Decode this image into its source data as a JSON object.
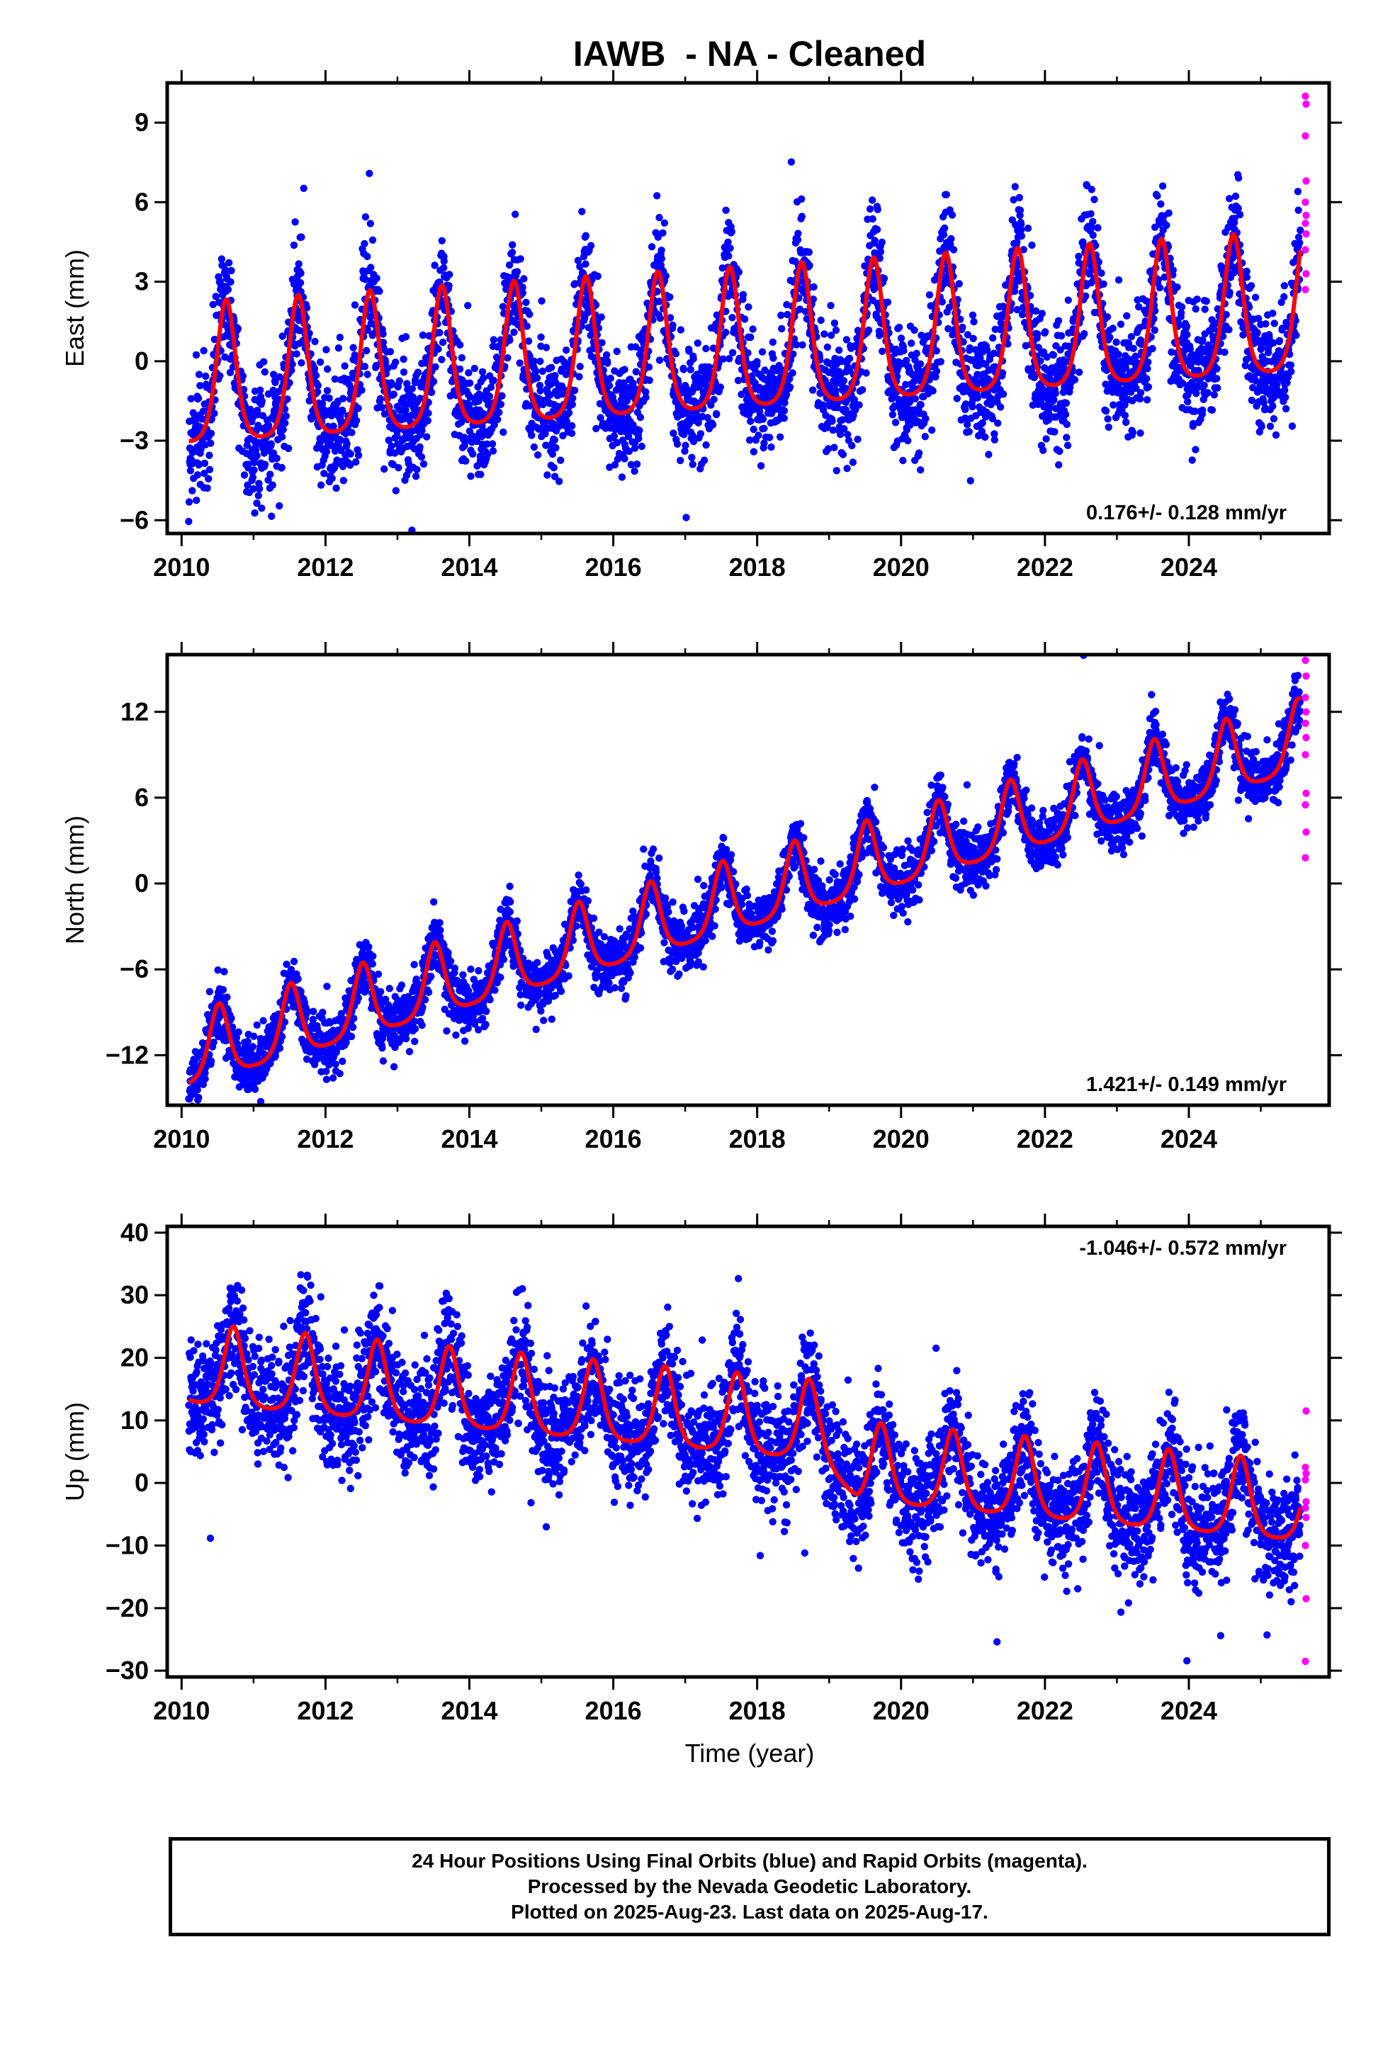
{
  "title": "IAWB  - NA - Cleaned",
  "xlabel": "Time (year)",
  "footer": [
    "24 Hour Positions Using Final Orbits (blue) and Rapid Orbits (magenta).",
    "Processed by the Nevada Geodetic Laboratory.",
    "Plotted on 2025-Aug-23. Last data on 2025-Aug-17."
  ],
  "colors": {
    "final_orbits": "#0000ff",
    "rapid_orbits": "#ff00ff",
    "model_fit": "#ff0000"
  },
  "chart_data": [
    {
      "type": "scatter",
      "ylabel": "East (mm)",
      "xlim": [
        2009.8,
        2025.95
      ],
      "ylim": [
        -6.5,
        10.5
      ],
      "xticks": [
        2010,
        2012,
        2014,
        2016,
        2018,
        2020,
        2022,
        2024
      ],
      "yticks": [
        -6,
        -3,
        0,
        3,
        6,
        9
      ],
      "ytick_labels": [
        "−6",
        "−3",
        "0",
        "3",
        "6",
        "9"
      ],
      "rate_label": "0.176+/- 0.128 mm/yr",
      "rate_label_position": "bottom-right",
      "model": {
        "offset": -0.3,
        "trend": 0.176,
        "amplitude": 2.3,
        "peak_phase": 0.62,
        "noise": 1.1
      },
      "data_start": 2010.1,
      "data_end": 2025.55,
      "rapid_orbit_values": [
        2.7,
        3.3,
        4.2,
        4.8,
        5.2,
        5.5,
        6.0,
        6.8,
        8.5,
        9.7,
        10.0
      ]
    },
    {
      "type": "scatter",
      "ylabel": "North (mm)",
      "xlim": [
        2009.8,
        2025.95
      ],
      "ylim": [
        -15.5,
        16.0
      ],
      "xticks": [
        2010,
        2012,
        2014,
        2016,
        2018,
        2020,
        2022,
        2024
      ],
      "yticks": [
        -12,
        -6,
        0,
        6,
        12
      ],
      "ytick_labels": [
        "−12",
        "−6",
        "0",
        "6",
        "12"
      ],
      "rate_label": "1.421+/- 0.149 mm/yr",
      "rate_label_position": "bottom-right",
      "model": {
        "offset": -1.5,
        "trend": 1.421,
        "amplitude": 2.2,
        "peak_phase": 0.52,
        "noise": 1.0
      },
      "data_start": 2010.1,
      "data_end": 2025.55,
      "rapid_orbit_values": [
        1.8,
        3.6,
        5.5,
        6.3,
        9.0,
        10.2,
        11.2,
        12.0,
        13.0,
        14.5,
        15.6
      ]
    },
    {
      "type": "scatter",
      "ylabel": "Up (mm)",
      "xlim": [
        2009.8,
        2025.95
      ],
      "ylim": [
        -31,
        41
      ],
      "xticks": [
        2010,
        2012,
        2014,
        2016,
        2018,
        2020,
        2022,
        2024
      ],
      "yticks": [
        -30,
        -20,
        -10,
        0,
        10,
        20,
        30,
        40
      ],
      "ytick_labels": [
        "−30",
        "−20",
        "−10",
        "0",
        "10",
        "20",
        "30",
        "40"
      ],
      "rate_label": "-1.046+/- 0.572 mm/yr",
      "rate_label_position": "top-right",
      "model": {
        "offset": 8.0,
        "trend": -1.046,
        "amplitude": 5.5,
        "peak_phase": 0.72,
        "noise": 4.5
      },
      "offset_after_2018_9": -6.0,
      "data_start": 2010.1,
      "data_end": 2025.55,
      "rapid_orbit_values": [
        -28.5,
        -18.5,
        -10.0,
        -5.5,
        -4.0,
        -3.0,
        0.5,
        1.5,
        2.5,
        11.5
      ]
    }
  ]
}
